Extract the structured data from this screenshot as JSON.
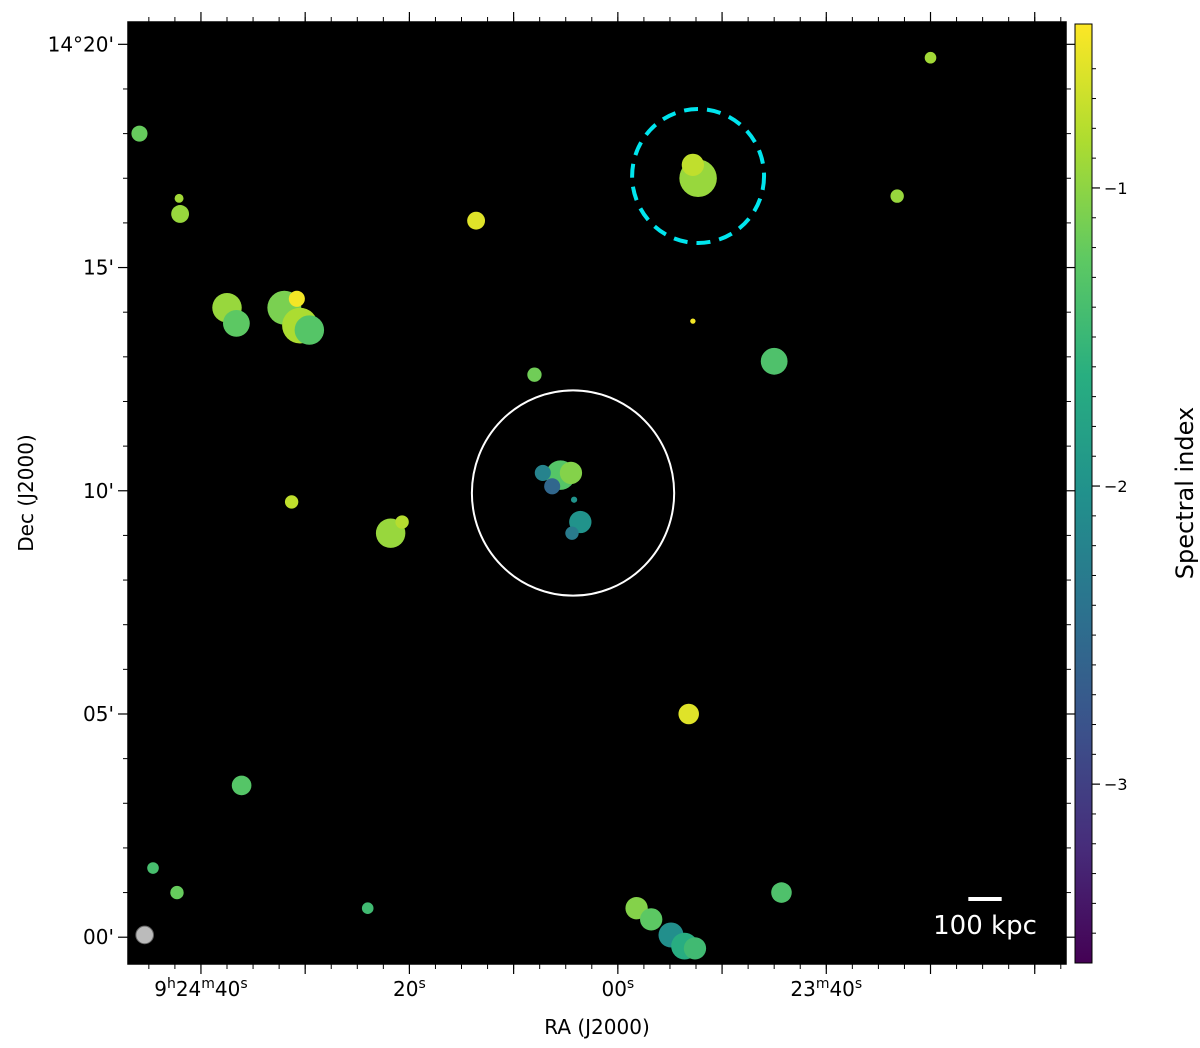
{
  "chart_data": {
    "type": "heatmap",
    "title": "",
    "xlabel": "RA (J2000)",
    "ylabel": "Dec (J2000)",
    "colorbar_label": "Spectral index",
    "colormap": "viridis",
    "background_color": "#000000",
    "x_range_s": [
      -47,
      43
    ],
    "y_range_arcmin": [
      -0.6,
      20.5
    ],
    "x_ticks": [
      {
        "value": -40,
        "label": "9h24m40s"
      },
      {
        "value": -20,
        "label": "20s"
      },
      {
        "value": 0,
        "label": "00s"
      },
      {
        "value": 20,
        "label": "23m40s"
      }
    ],
    "y_ticks": [
      {
        "value": 0,
        "label": "00'"
      },
      {
        "value": 5,
        "label": "05'"
      },
      {
        "value": 10,
        "label": "10'"
      },
      {
        "value": 15,
        "label": "15'"
      },
      {
        "value": 20,
        "label": "14°20'"
      }
    ],
    "colorbar": {
      "range": [
        -3.6,
        -0.45
      ],
      "ticks": [
        {
          "value": -1,
          "label": "−1"
        },
        {
          "value": -2,
          "label": "−2"
        },
        {
          "value": -3,
          "label": "−3"
        }
      ]
    },
    "sources": [
      {
        "x": -45.9,
        "y": 18.0,
        "r": 0.18,
        "alpha": -1.2
      },
      {
        "x": -42.0,
        "y": 16.2,
        "r": 0.2,
        "alpha": -0.95
      },
      {
        "x": -42.1,
        "y": 16.55,
        "r": 0.1,
        "alpha": -0.9
      },
      {
        "x": 30.0,
        "y": 19.7,
        "r": 0.13,
        "alpha": -0.9
      },
      {
        "x": 26.8,
        "y": 16.6,
        "r": 0.15,
        "alpha": -0.95
      },
      {
        "x": -13.6,
        "y": 16.05,
        "r": 0.2,
        "alpha": -0.6
      },
      {
        "x": 7.7,
        "y": 17.0,
        "r": 0.42,
        "alpha": -0.95
      },
      {
        "x": 7.2,
        "y": 17.3,
        "r": 0.25,
        "alpha": -0.75
      },
      {
        "x": -37.5,
        "y": 14.1,
        "r": 0.33,
        "alpha": -0.95
      },
      {
        "x": -36.6,
        "y": 13.75,
        "r": 0.3,
        "alpha": -1.25
      },
      {
        "x": -32.0,
        "y": 14.1,
        "r": 0.38,
        "alpha": -1.1
      },
      {
        "x": -30.5,
        "y": 13.7,
        "r": 0.4,
        "alpha": -0.85
      },
      {
        "x": -29.6,
        "y": 13.6,
        "r": 0.33,
        "alpha": -1.3
      },
      {
        "x": -30.8,
        "y": 14.3,
        "r": 0.18,
        "alpha": -0.5
      },
      {
        "x": 7.2,
        "y": 13.8,
        "r": 0.06,
        "alpha": -0.5
      },
      {
        "x": 15.0,
        "y": 12.9,
        "r": 0.3,
        "alpha": -1.35
      },
      {
        "x": -8.0,
        "y": 12.6,
        "r": 0.16,
        "alpha": -1.15
      },
      {
        "x": -31.3,
        "y": 9.75,
        "r": 0.15,
        "alpha": -0.75
      },
      {
        "x": -21.8,
        "y": 9.05,
        "r": 0.33,
        "alpha": -0.95
      },
      {
        "x": -20.7,
        "y": 9.3,
        "r": 0.15,
        "alpha": -0.8
      },
      {
        "x": -5.5,
        "y": 10.35,
        "r": 0.33,
        "alpha": -1.3
      },
      {
        "x": -4.5,
        "y": 10.4,
        "r": 0.25,
        "alpha": -1.05
      },
      {
        "x": -7.2,
        "y": 10.4,
        "r": 0.18,
        "alpha": -2.2
      },
      {
        "x": -6.3,
        "y": 10.1,
        "r": 0.18,
        "alpha": -2.55
      },
      {
        "x": -3.6,
        "y": 9.3,
        "r": 0.25,
        "alpha": -2.0
      },
      {
        "x": -4.4,
        "y": 9.05,
        "r": 0.15,
        "alpha": -2.3
      },
      {
        "x": -4.2,
        "y": 9.8,
        "r": 0.07,
        "alpha": -2.0
      },
      {
        "x": 6.8,
        "y": 5.0,
        "r": 0.23,
        "alpha": -0.6
      },
      {
        "x": -36.1,
        "y": 3.4,
        "r": 0.22,
        "alpha": -1.3
      },
      {
        "x": -44.6,
        "y": 1.55,
        "r": 0.13,
        "alpha": -1.4
      },
      {
        "x": -42.3,
        "y": 1.0,
        "r": 0.15,
        "alpha": -1.2
      },
      {
        "x": -24.0,
        "y": 0.65,
        "r": 0.13,
        "alpha": -1.45
      },
      {
        "x": 15.7,
        "y": 1.0,
        "r": 0.23,
        "alpha": -1.35
      },
      {
        "x": 1.8,
        "y": 0.65,
        "r": 0.25,
        "alpha": -1.05
      },
      {
        "x": 3.2,
        "y": 0.4,
        "r": 0.25,
        "alpha": -1.25
      },
      {
        "x": 5.1,
        "y": 0.05,
        "r": 0.28,
        "alpha": -2.05
      },
      {
        "x": 6.4,
        "y": -0.2,
        "r": 0.3,
        "alpha": -1.65
      },
      {
        "x": 7.4,
        "y": -0.25,
        "r": 0.25,
        "alpha": -1.45
      }
    ],
    "circles": [
      {
        "x": -4.3,
        "y": 9.95,
        "r": 2.3,
        "color": "#ffffff",
        "style": "solid"
      },
      {
        "x": 7.7,
        "y": 17.05,
        "r": 1.5,
        "color": "#00e5ee",
        "style": "dashed"
      }
    ],
    "beam": {
      "x": -45.4,
      "y": 0.05,
      "r": 0.13,
      "color": "#bbbbbb"
    },
    "scalebar": {
      "label": "100 kpc",
      "length_s": 3.2
    }
  }
}
